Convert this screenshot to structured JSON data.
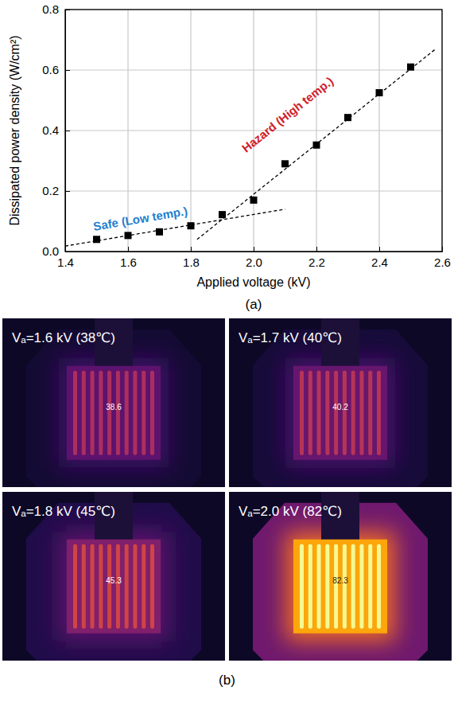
{
  "chart_data": {
    "type": "scatter",
    "x_label": "Applied voltage (kV)",
    "y_label": "Dissipated power density (W/cm²)",
    "xlim": [
      1.4,
      2.6
    ],
    "xticks": [
      1.4,
      1.6,
      1.8,
      {
        "value": 2,
        "label": "2.0"
      },
      2.2,
      2.4,
      2.6
    ],
    "ylim": [
      0,
      0.8
    ],
    "yticks": [
      {
        "value": 0,
        "label": "0.0"
      },
      0.2,
      0.4,
      0.6,
      0.8
    ],
    "grid": true,
    "series": [
      {
        "type": "scatter",
        "marker": "square",
        "color": "#000000",
        "x": [
          1.5,
          1.6,
          1.7,
          1.8,
          1.9,
          2.0,
          2.1,
          2.2,
          2.3,
          2.4,
          2.5
        ],
        "values": [
          0.04,
          0.053,
          0.065,
          0.085,
          0.122,
          0.17,
          0.29,
          0.352,
          0.443,
          0.525,
          0.61
        ]
      },
      {
        "type": "line",
        "line_style": "dashed",
        "color": "#000000",
        "x": [
          1.4,
          2.1
        ],
        "values": [
          0.018,
          0.14
        ]
      },
      {
        "type": "line",
        "line_style": "dashed",
        "color": "#000000",
        "x": [
          1.82,
          2.58
        ],
        "values": [
          0.04,
          0.67
        ]
      }
    ],
    "annotations": [
      {
        "text": "Safe (Low temp.)",
        "x": 1.64,
        "y": 0.105,
        "color": "#1f7fd0"
      },
      {
        "text": "Hazard (High temp.)",
        "x": 2.11,
        "y": 0.45,
        "color": "#d0202a"
      }
    ]
  },
  "panel_labels": [
    "(a)",
    "(b)"
  ],
  "thermal_images": [
    {
      "label": "Vₐ=1.6 kV (38℃)",
      "temperature": 38,
      "reading": "38.6"
    },
    {
      "label": "Vₐ=1.7 kV (40℃)",
      "temperature": 40,
      "reading": "40.2"
    },
    {
      "label": "Vₐ=1.8 kV (45℃)",
      "temperature": 45,
      "reading": "45.3"
    },
    {
      "label": "Vₐ=2.0 kV (82℃)",
      "temperature": 82,
      "reading": "82.3"
    }
  ]
}
